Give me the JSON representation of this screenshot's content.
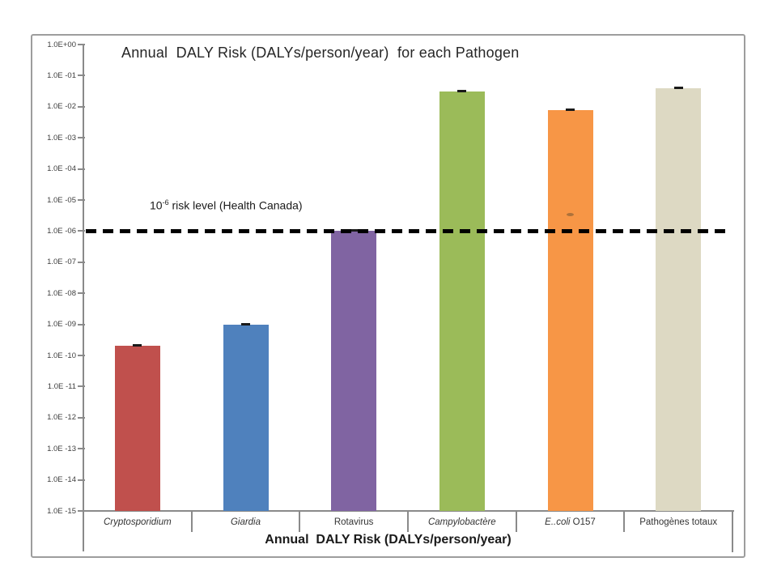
{
  "chart_data": {
    "type": "bar",
    "title": "Annual  DALY Risk (DALYs/person/year)  for each Pathogen",
    "x_axis_title": "Annual  DALY Risk (DALYs/person/year)",
    "y_scale": "log",
    "ylim": [
      1e-15,
      1.0
    ],
    "grid": "off",
    "legend": "none",
    "y_ticks": [
      "1.0E+00",
      "1.0E -01",
      "1.0E -02",
      "1.0E -03",
      "1.0E -04",
      "1.0E -05",
      "1.0E -06",
      "1.0E -08",
      "1.0E -09",
      "1.0E -10",
      "1.0E -11",
      "1.0E -12",
      "1.0E -13",
      "1.0E -14",
      "1.0E -15"
    ],
    "categories": [
      {
        "segments": [
          {
            "text": "Cryptosporidium",
            "italic": true
          }
        ]
      },
      {
        "segments": [
          {
            "text": "Giardia",
            "italic": true
          }
        ]
      },
      {
        "segments": [
          {
            "text": "Rotavirus",
            "italic": false
          }
        ]
      },
      {
        "segments": [
          {
            "text": "Campylobactère",
            "italic": true
          }
        ]
      },
      {
        "segments": [
          {
            "text": "E..coli",
            "italic": true
          },
          {
            "text": " O157",
            "italic": false
          }
        ]
      },
      {
        "segments": [
          {
            "text": "Pathogènes totaux",
            "italic": false
          }
        ]
      }
    ],
    "values": [
      2e-10,
      1e-09,
      1e-06,
      0.03,
      0.008,
      0.04
    ],
    "bar_colors": [
      "#C0504D",
      "#4F81BD",
      "#8064A2",
      "#9BBB59",
      "#F79646",
      "#DDD9C3"
    ],
    "error_caps": true,
    "threshold_line": {
      "value": 1e-06,
      "style": "dashed",
      "color": "#000000",
      "label_base": "10",
      "label_sup": "-6",
      "label_rest": " risk level (Health Canada)"
    },
    "stray_mark": {
      "category_index": 4,
      "value": 3.5e-06
    }
  }
}
